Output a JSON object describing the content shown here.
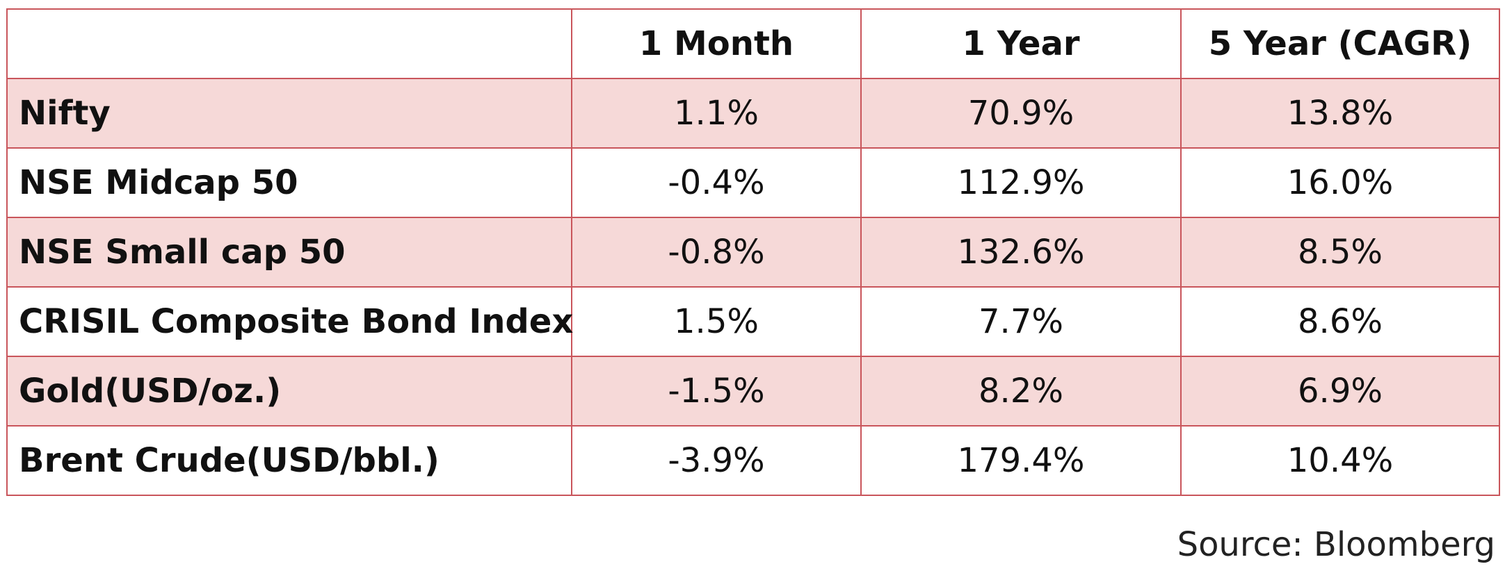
{
  "table": {
    "headers": [
      "",
      "1 Month",
      "1 Year",
      "5 Year (CAGR)"
    ],
    "rows": [
      {
        "label": "Nifty",
        "one_month": "1.1%",
        "one_year": "70.9%",
        "five_year": "13.8%"
      },
      {
        "label": "NSE Midcap 50",
        "one_month": "-0.4%",
        "one_year": "112.9%",
        "five_year": "16.0%"
      },
      {
        "label": "NSE Small cap 50",
        "one_month": "-0.8%",
        "one_year": "132.6%",
        "five_year": "8.5%"
      },
      {
        "label": "CRISIL Composite Bond Index",
        "one_month": "1.5%",
        "one_year": "7.7%",
        "five_year": "8.6%"
      },
      {
        "label": "Gold(USD/oz.)",
        "one_month": "-1.5%",
        "one_year": "8.2%",
        "five_year": "6.9%"
      },
      {
        "label": "Brent Crude(USD/bbl.)",
        "one_month": "-3.9%",
        "one_year": "179.4%",
        "five_year": "10.4%"
      }
    ]
  },
  "source": "Source: Bloomberg",
  "colors": {
    "border": "#c9555b",
    "shaded_row": "#f6d9d8",
    "plain_row": "#ffffff"
  }
}
